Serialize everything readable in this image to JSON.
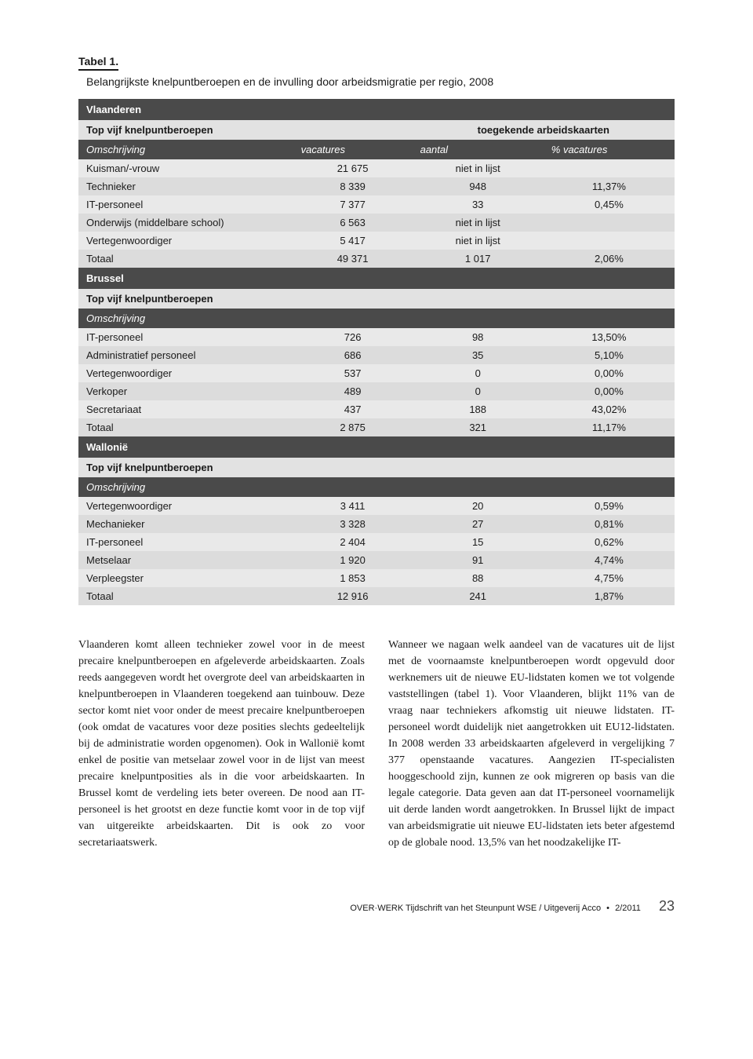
{
  "table": {
    "title": "Tabel 1.",
    "subtitle": "Belangrijkste knelpuntberoepen en de invulling door arbeidsmigratie per regio, 2008",
    "headers": {
      "toegekende": "toegekende arbeidskaarten",
      "omschrijving": "Omschrijving",
      "vacatures": "vacatures",
      "aantal": "aantal",
      "pct_vacatures": "% vacatures"
    },
    "top_label": "Top vijf knelpuntberoepen",
    "regions": [
      {
        "name": "Vlaanderen",
        "rows": [
          {
            "desc": "Kuisman/-vrouw",
            "vac": "21 675",
            "num": "niet in lijst",
            "pct": ""
          },
          {
            "desc": "Technieker",
            "vac": "8 339",
            "num": "948",
            "pct": "11,37%"
          },
          {
            "desc": "IT-personeel",
            "vac": "7 377",
            "num": "33",
            "pct": "0,45%"
          },
          {
            "desc": "Onderwijs (middelbare school)",
            "vac": "6 563",
            "num": "niet in lijst",
            "pct": ""
          },
          {
            "desc": "Vertegenwoordiger",
            "vac": "5 417",
            "num": "niet in lijst",
            "pct": ""
          },
          {
            "desc": "Totaal",
            "vac": "49 371",
            "num": "1 017",
            "pct": "2,06%"
          }
        ]
      },
      {
        "name": "Brussel",
        "rows": [
          {
            "desc": "IT-personeel",
            "vac": "726",
            "num": "98",
            "pct": "13,50%"
          },
          {
            "desc": "Administratief personeel",
            "vac": "686",
            "num": "35",
            "pct": "5,10%"
          },
          {
            "desc": "Vertegenwoordiger",
            "vac": "537",
            "num": "0",
            "pct": "0,00%"
          },
          {
            "desc": "Verkoper",
            "vac": "489",
            "num": "0",
            "pct": "0,00%"
          },
          {
            "desc": "Secretariaat",
            "vac": "437",
            "num": "188",
            "pct": "43,02%"
          },
          {
            "desc": "Totaal",
            "vac": "2 875",
            "num": "321",
            "pct": "11,17%"
          }
        ]
      },
      {
        "name": "Wallonië",
        "rows": [
          {
            "desc": "Vertegenwoordiger",
            "vac": "3 411",
            "num": "20",
            "pct": "0,59%"
          },
          {
            "desc": "Mechanieker",
            "vac": "3 328",
            "num": "27",
            "pct": "0,81%"
          },
          {
            "desc": "IT-personeel",
            "vac": "2 404",
            "num": "15",
            "pct": "0,62%"
          },
          {
            "desc": "Metselaar",
            "vac": "1 920",
            "num": "91",
            "pct": "4,74%"
          },
          {
            "desc": "Verpleegster",
            "vac": "1 853",
            "num": "88",
            "pct": "4,75%"
          },
          {
            "desc": "Totaal",
            "vac": "12 916",
            "num": "241",
            "pct": "1,87%"
          }
        ]
      }
    ]
  },
  "body": {
    "left": "Vlaanderen komt alleen technieker zowel voor in de meest precaire knelpuntberoepen en afgeleverde arbeidskaarten. Zoals reeds aangegeven wordt het overgrote deel van arbeidskaarten in knelpuntberoepen in Vlaanderen toegekend aan tuinbouw. Deze sector komt niet voor onder de meest precaire knelpuntberoepen (ook omdat de vacatures voor deze posities slechts gedeeltelijk bij de administratie worden opgenomen). Ook in Wallonië komt enkel de positie van metselaar zowel voor in de lijst van meest precaire knelpuntposities als in die voor arbeidskaarten. In Brussel komt de verdeling iets beter overeen. De nood aan IT-personeel is het grootst en deze functie komt voor in de top vijf van uitgereikte arbeidskaarten. Dit is ook zo voor secretariaatswerk.",
    "right": "Wanneer we nagaan welk aandeel van de vacatures uit de lijst met de voornaamste knelpuntberoepen wordt opgevuld door werknemers uit de nieuwe EU-lidstaten komen we tot volgende vaststellingen (tabel 1). Voor Vlaanderen, blijkt 11% van de vraag naar techniekers afkomstig uit nieuwe lidstaten. IT-personeel wordt duidelijk niet aangetrokken uit EU12-lidstaten. In 2008 werden 33 arbeidskaarten afgeleverd in vergelijking 7 377 openstaande vacatures. Aangezien IT-specialisten hooggeschoold zijn, kunnen ze ook migreren op basis van die legale categorie. Data geven aan dat IT-personeel voornamelijk uit derde landen wordt aangetrokken. In Brussel lijkt de impact van arbeidsmigratie uit nieuwe EU-lidstaten iets beter afgestemd op de globale nood. 13,5% van het noodzakelijke IT-"
  },
  "footer": {
    "journal": "OVER·WERK Tijdschrift van het Steunpunt WSE / Uitgeverij Acco",
    "issue": "2/2011",
    "page": "23"
  },
  "colors": {
    "dark_row": "#4a4a4a",
    "light_a": "#e9e9e9",
    "light_b": "#dcdcdc",
    "sub_row": "#e2e2e2",
    "text": "#1a1a1a"
  }
}
